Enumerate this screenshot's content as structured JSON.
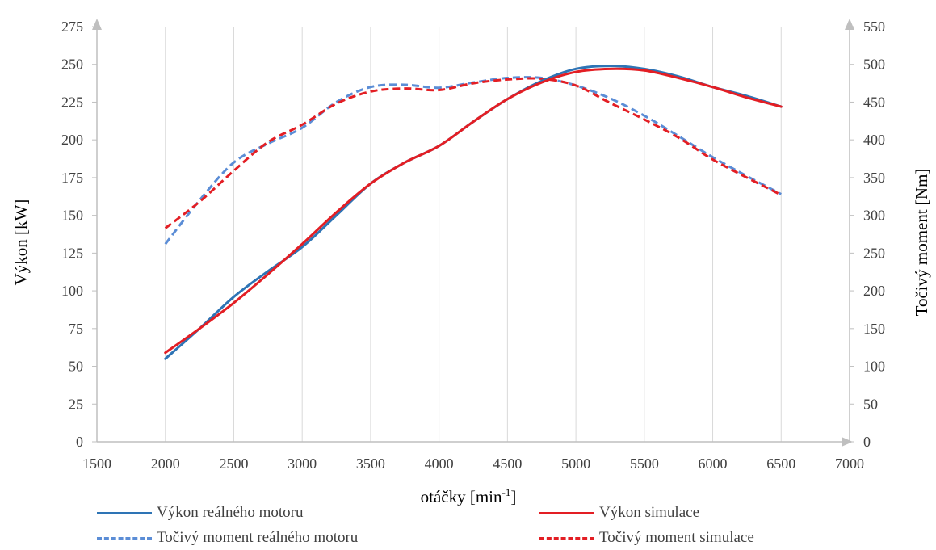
{
  "chart_data": {
    "type": "line",
    "xlabel_main": "otáčky [min",
    "xlabel_sup": "-1",
    "xlabel_end": "]",
    "ylabel_left": "Výkon [kW]",
    "ylabel_right": "Točivý moment [Nm]",
    "xlim": [
      1500,
      7000
    ],
    "ylim_left": [
      0,
      275
    ],
    "ylim_right": [
      0,
      550
    ],
    "x_ticks": [
      "1500",
      "2000",
      "2500",
      "3000",
      "3500",
      "4000",
      "4500",
      "5000",
      "5500",
      "6000",
      "6500",
      "7000"
    ],
    "y_left_ticks": [
      "0",
      "25",
      "50",
      "75",
      "100",
      "125",
      "150",
      "175",
      "200",
      "225",
      "250",
      "275"
    ],
    "y_right_ticks": [
      "0",
      "50",
      "100",
      "150",
      "200",
      "250",
      "300",
      "350",
      "400",
      "450",
      "500",
      "550"
    ],
    "grid": "vertical",
    "legend_position": "bottom",
    "series": [
      {
        "name": "Výkon reálného motoru",
        "axis": "left",
        "color": "#2E74B5",
        "dash": "solid",
        "x": [
          2000,
          2250,
          2500,
          2750,
          3000,
          3250,
          3500,
          3750,
          4000,
          4250,
          4500,
          4750,
          5000,
          5250,
          5500,
          5750,
          6000,
          6250,
          6500
        ],
        "y": [
          55,
          75,
          96,
          113,
          129,
          150,
          171,
          185,
          196,
          212,
          227,
          239,
          247,
          249,
          247,
          242,
          235,
          229,
          222
        ]
      },
      {
        "name": "Výkon simulace",
        "axis": "left",
        "color": "#E31E24",
        "dash": "solid",
        "x": [
          2000,
          2250,
          2500,
          2750,
          3000,
          3250,
          3500,
          3750,
          4000,
          4250,
          4500,
          4750,
          5000,
          5250,
          5500,
          5750,
          6000,
          6250,
          6500
        ],
        "y": [
          59,
          75,
          92,
          111,
          131,
          152,
          171,
          185,
          196,
          212,
          227,
          238,
          245,
          247,
          246,
          241,
          235,
          228,
          222
        ]
      },
      {
        "name": "Točivý moment reálného motoru",
        "axis": "right",
        "color": "#5B8DD6",
        "dash": "dashed",
        "x": [
          2000,
          2250,
          2500,
          2750,
          3000,
          3250,
          3500,
          3750,
          4000,
          4250,
          4500,
          4750,
          5000,
          5250,
          5500,
          5750,
          6000,
          6250,
          6500
        ],
        "y": [
          262,
          320,
          370,
          395,
          416,
          450,
          470,
          473,
          469,
          476,
          482,
          482,
          472,
          455,
          432,
          405,
          377,
          352,
          328
        ]
      },
      {
        "name": "Točivý moment simulace",
        "axis": "right",
        "color": "#E31E24",
        "dash": "dashed",
        "x": [
          2000,
          2250,
          2500,
          2750,
          3000,
          3250,
          3500,
          3750,
          4000,
          4250,
          4500,
          4750,
          5000,
          5250,
          5500,
          5750,
          6000,
          6250,
          6500
        ],
        "y": [
          283,
          318,
          359,
          397,
          420,
          448,
          464,
          468,
          466,
          475,
          480,
          481,
          472,
          449,
          427,
          403,
          374,
          350,
          327
        ]
      }
    ]
  }
}
